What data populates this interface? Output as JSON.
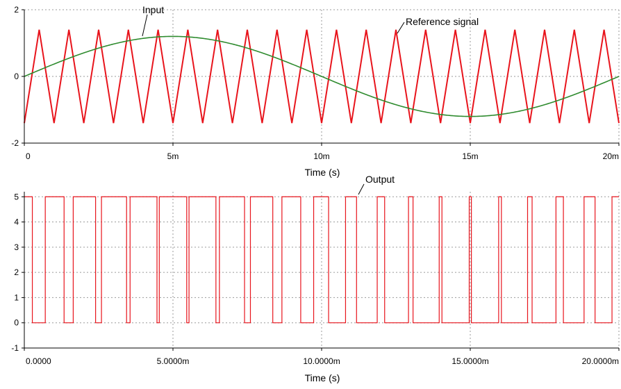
{
  "chart_data": [
    {
      "type": "line",
      "xlabel": "Time (s)",
      "xlim": [
        0,
        0.02
      ],
      "ylim": [
        -2,
        2
      ],
      "xticks": [
        0,
        0.005,
        0.01,
        0.015,
        0.02
      ],
      "xtick_labels": [
        "0",
        "5m",
        "10m",
        "15m",
        "20m"
      ],
      "yticks": [
        -2,
        0,
        2
      ],
      "ytick_labels": [
        "-2",
        "0",
        "2"
      ],
      "grid": true,
      "annotations": [
        "Input",
        "Reference signal"
      ],
      "series": [
        {
          "name": "Input",
          "color": "#e8141c",
          "waveform": "triangle",
          "frequency_hz": 1000,
          "min": -1.4,
          "max": 1.4,
          "first_minimum_at": 0
        },
        {
          "name": "Reference signal",
          "color": "#2e8b2e",
          "waveform": "sine",
          "frequency_hz": 50,
          "amplitude": 1.2,
          "phase": 0
        }
      ]
    },
    {
      "type": "line",
      "xlabel": "Time (s)",
      "xlim": [
        0,
        0.02
      ],
      "ylim": [
        -1,
        5.2
      ],
      "xticks": [
        0,
        0.005,
        0.01,
        0.015,
        0.02
      ],
      "xtick_labels": [
        "0.0000",
        "5.0000m",
        "10.0000m",
        "15.0000m",
        "20.0000m"
      ],
      "yticks": [
        -1,
        0,
        1,
        2,
        3,
        4,
        5
      ],
      "ytick_labels": [
        "-1",
        "0",
        "1",
        "2",
        "3",
        "4",
        "5"
      ],
      "grid": true,
      "annotations": [
        "Output"
      ],
      "series": [
        {
          "name": "Output",
          "color": "#e8141c",
          "waveform": "pwm",
          "high": 5,
          "low": 0,
          "comparison": "high when Reference signal > Input"
        }
      ]
    }
  ]
}
